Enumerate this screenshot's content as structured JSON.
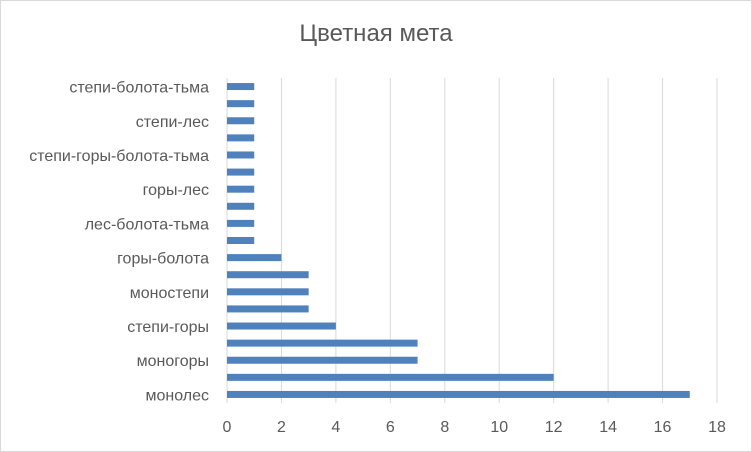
{
  "chart_data": {
    "type": "bar",
    "orientation": "horizontal",
    "title": "Цветная мета",
    "xlabel": "",
    "ylabel": "",
    "xlim": [
      0,
      18
    ],
    "xticks": [
      0,
      2,
      4,
      6,
      8,
      10,
      12,
      14,
      16,
      18
    ],
    "grid": "vertical",
    "legend": "none",
    "bar_color": "#4f81bd",
    "categories": [
      "монолес",
      "",
      "моногоры",
      "",
      "степи-горы ",
      "",
      "моностепи",
      "",
      "горы-болота",
      "",
      "лес-болота-тьма",
      "",
      "горы-лес ",
      "",
      "степи-горы-болота-тьма",
      "",
      "степи-лес",
      "",
      "степи-болота-тьма"
    ],
    "values": [
      17,
      12,
      7,
      7,
      4,
      3,
      3,
      3,
      2,
      1,
      1,
      1,
      1,
      1,
      1,
      1,
      1,
      1,
      1
    ]
  }
}
